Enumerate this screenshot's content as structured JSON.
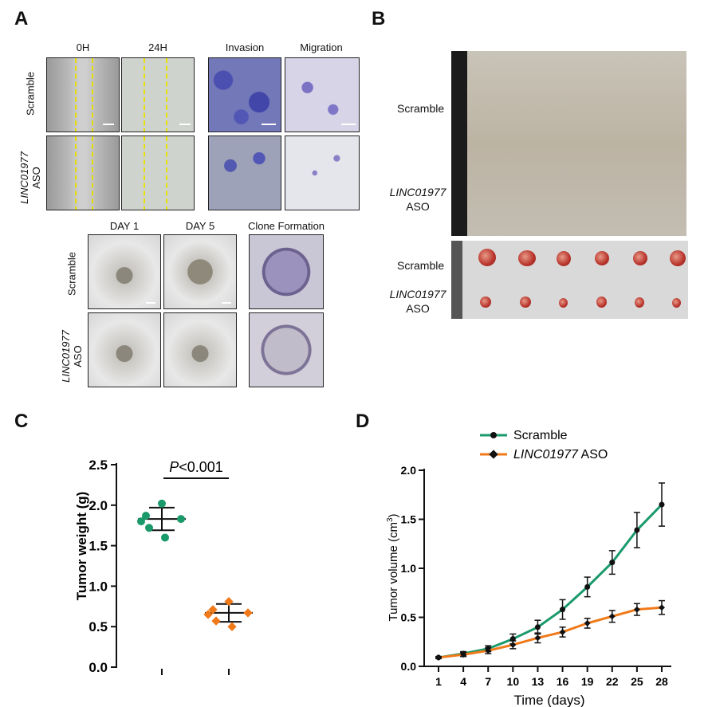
{
  "panels": {
    "a": "A",
    "b": "B",
    "c": "C",
    "d": "D"
  },
  "panelA": {
    "headers": {
      "h0": "0H",
      "h24": "24H",
      "invasion": "Invasion",
      "migration": "Migration",
      "day1": "DAY 1",
      "day5": "DAY 5",
      "clone": "Clone Formation"
    },
    "rows": {
      "scramble": "Scramble",
      "aso_gene": "LINC01977",
      "aso_suffix": "ASO"
    }
  },
  "panelB": {
    "scramble": "Scramble",
    "aso_gene": "LINC01977",
    "aso_suffix": "ASO"
  },
  "chart_data": [
    {
      "type": "scatter",
      "ylabel": "Tumor weight (g)",
      "ylim": [
        0,
        2.5
      ],
      "yticks": [
        "0.0",
        "0.5",
        "1.0",
        "1.5",
        "2.0",
        "2.5"
      ],
      "annotation_italic": "P",
      "annotation_rest": "<0.001",
      "series": [
        {
          "color": "#1a9a6b",
          "marker": "circle",
          "values": [
            2.02,
            1.87,
            1.83,
            1.8,
            1.72,
            1.6
          ],
          "mean": 1.83,
          "sd_low": 1.69,
          "sd_high": 1.97
        },
        {
          "color": "#f07a1a",
          "marker": "diamond",
          "values": [
            0.81,
            0.71,
            0.67,
            0.65,
            0.57,
            0.5
          ],
          "mean": 0.67,
          "sd_low": 0.56,
          "sd_high": 0.78
        }
      ]
    },
    {
      "type": "line",
      "xlabel": "Time (days)",
      "ylabel_main": "Tumor volume  (cm",
      "ylabel_sup": "3",
      "ylabel_end": ")",
      "ylim": [
        0,
        2.0
      ],
      "yticks": [
        "0.0",
        "0.5",
        "1.0",
        "1.5",
        "2.0"
      ],
      "x": [
        1,
        4,
        7,
        10,
        13,
        16,
        19,
        22,
        25,
        28
      ],
      "xticks": [
        "1",
        "4",
        "7",
        "10",
        "13",
        "16",
        "19",
        "22",
        "25",
        "28"
      ],
      "legend": {
        "scramble": "Scramble",
        "aso_gene": "LINC01977",
        "aso_suffix": " ASO"
      },
      "series": [
        {
          "color": "#1a9a6b",
          "marker": "circle",
          "values": [
            0.09,
            0.13,
            0.18,
            0.28,
            0.4,
            0.58,
            0.81,
            1.06,
            1.39,
            1.65
          ],
          "err": [
            0.01,
            0.02,
            0.03,
            0.05,
            0.07,
            0.1,
            0.1,
            0.12,
            0.18,
            0.22
          ]
        },
        {
          "color": "#f07a1a",
          "marker": "diamond",
          "values": [
            0.09,
            0.12,
            0.16,
            0.22,
            0.29,
            0.35,
            0.44,
            0.51,
            0.58,
            0.6
          ],
          "err": [
            0.01,
            0.02,
            0.03,
            0.04,
            0.05,
            0.05,
            0.05,
            0.06,
            0.06,
            0.07
          ]
        }
      ]
    }
  ]
}
